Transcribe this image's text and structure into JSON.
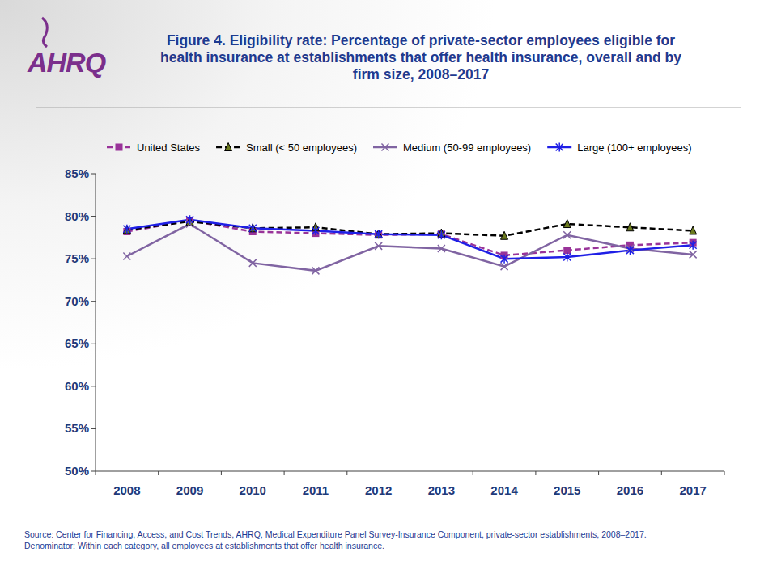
{
  "chart_data": {
    "type": "line",
    "title": "Figure 4. Eligibility rate: Percentage of private-sector employees eligible for health insurance at establishments that offer health insurance, overall and by firm size, 2008–2017",
    "logo_text": "AHRQ",
    "source": "Source: Center for Financing, Access, and Cost Trends, AHRQ, Medical Expenditure Panel Survey-Insurance Component, private-sector establishments, 2008–2017.",
    "note": "Denominator: Within each category, all employees at establishments that offer health insurance.",
    "categories": [
      "2008",
      "2009",
      "2010",
      "2011",
      "2012",
      "2013",
      "2014",
      "2015",
      "2016",
      "2017"
    ],
    "series": [
      {
        "name": "United States",
        "color": "#993399",
        "marker": "square",
        "line_style": "dashed",
        "values": [
          78.2,
          79.5,
          78.2,
          78.0,
          77.8,
          77.9,
          75.4,
          76.0,
          76.6,
          76.9
        ]
      },
      {
        "name": "Small (< 50 employees)",
        "color": "#000000",
        "marker": "triangle",
        "line_style": "dashed",
        "values": [
          78.4,
          79.4,
          78.6,
          78.7,
          77.9,
          78.0,
          77.7,
          79.1,
          78.7,
          78.3
        ]
      },
      {
        "name": "Medium (50-99 employees)",
        "color": "#8064a2",
        "marker": "x",
        "line_style": "solid",
        "values": [
          75.3,
          79.1,
          74.5,
          73.6,
          76.5,
          76.2,
          74.1,
          77.8,
          76.2,
          75.5
        ]
      },
      {
        "name": "Large (100+ employees)",
        "color": "#1f1fe6",
        "marker": "star",
        "line_style": "solid",
        "values": [
          78.5,
          79.6,
          78.6,
          78.3,
          77.9,
          77.8,
          75.0,
          75.2,
          76.0,
          76.6
        ]
      }
    ],
    "ylim": [
      50,
      85
    ],
    "yticks": [
      {
        "value": 50,
        "label": "50%"
      },
      {
        "value": 55,
        "label": "55%"
      },
      {
        "value": 60,
        "label": "60%"
      },
      {
        "value": 65,
        "label": "65%"
      },
      {
        "value": 70,
        "label": "70%"
      },
      {
        "value": 75,
        "label": "75%"
      },
      {
        "value": 80,
        "label": "80%"
      },
      {
        "value": 85,
        "label": "85%"
      }
    ],
    "grid": false,
    "legend": "top"
  }
}
